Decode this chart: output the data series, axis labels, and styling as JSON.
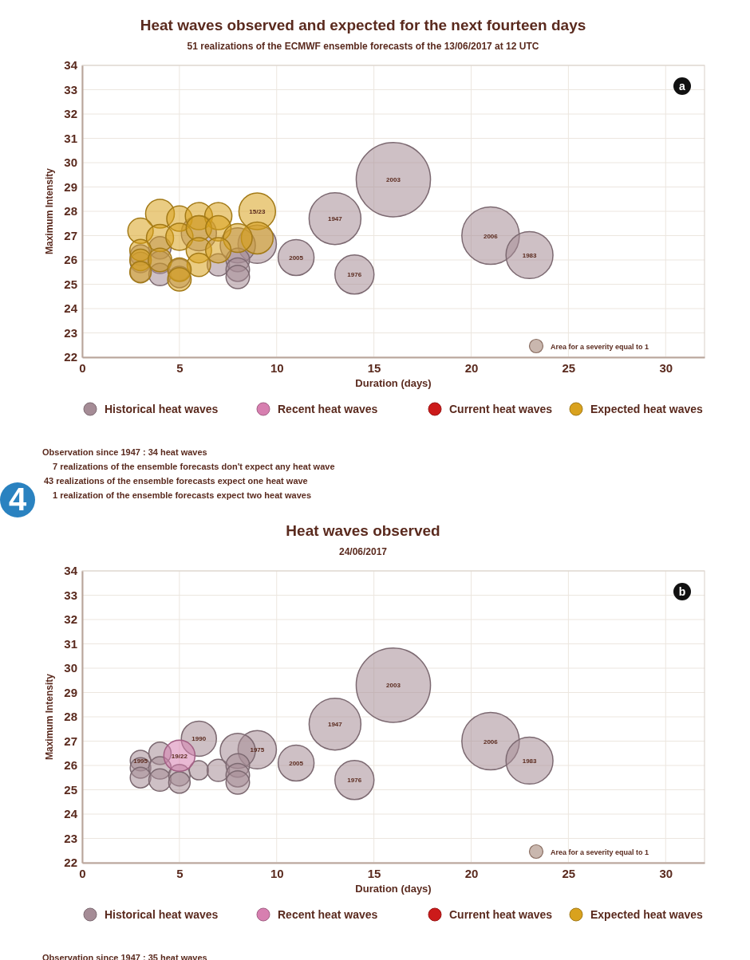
{
  "chart_data": [
    {
      "type": "bubble",
      "title": "Heat waves observed and expected for the next fourteen days",
      "subtitle": "51 realizations of the ECMWF ensemble forecasts of the 13/06/2017 at 12 UTC",
      "xlabel": "Duration (days)",
      "ylabel": "Maximum Intensity",
      "xlim": [
        0,
        32
      ],
      "ylim": [
        22,
        34
      ],
      "xticks": [
        0,
        5,
        10,
        15,
        20,
        25,
        30
      ],
      "yticks": [
        22,
        23,
        24,
        25,
        26,
        27,
        28,
        29,
        30,
        31,
        32,
        33,
        34
      ],
      "grid": true,
      "legend": "bottom",
      "size_legend": [
        {
          "value": 1,
          "label": "Area for a severity equal to 1"
        }
      ],
      "series": [
        {
          "name": "Historical heat waves",
          "color": "#a58c96",
          "x": [
            16,
            21,
            13,
            23,
            14,
            11,
            9,
            6,
            3,
            3,
            3,
            4,
            4,
            4,
            5,
            5,
            6,
            7,
            8,
            8,
            8,
            8
          ],
          "values": [
            29.3,
            27.0,
            27.7,
            26.2,
            25.4,
            26.1,
            26.65,
            27.1,
            26.2,
            25.9,
            25.5,
            26.5,
            25.9,
            25.4,
            25.6,
            25.3,
            null,
            25.8,
            26.6,
            26.0,
            25.6,
            25.3
          ],
          "sizes": [
            30,
            18,
            14.6,
            12,
            8.3,
            7,
            8,
            6.7,
            2.3,
            2.3,
            2.3,
            2.7,
            2.7,
            2.7,
            2.5,
            2.5,
            null,
            2.7,
            6.7,
            3,
            3,
            3
          ]
        },
        {
          "name": "Recent heat waves",
          "color": "#d77fb0"
        },
        {
          "name": "Current heat waves",
          "color": "#cc1a1a"
        },
        {
          "name": "Expected heat waves",
          "color": "#d9a21e",
          "x": [
            9,
            4,
            5,
            6,
            7,
            3,
            4,
            5,
            6,
            7,
            9,
            8,
            3,
            3,
            3,
            4,
            6,
            7,
            6,
            5,
            5
          ],
          "values": [
            28.0,
            27.9,
            27.7,
            27.8,
            27.8,
            27.2,
            26.9,
            26.95,
            27.3,
            27.3,
            26.9,
            26.9,
            26.4,
            26.0,
            25.5,
            26.0,
            26.4,
            26.4,
            25.8,
            25.6,
            25.2
          ],
          "sizes": [
            7.3,
            4.5,
            3.5,
            4,
            4,
            3.5,
            4,
            4,
            3.5,
            3.5,
            5.5,
            4.5,
            2.5,
            2.5,
            2.5,
            3,
            3.5,
            3.5,
            3,
            3,
            3
          ]
        }
      ],
      "annotations": [
        "a",
        "Observation since 1947 : 34 heat waves",
        "7 realizations of the ensemble forecasts don't expect any heat wave",
        "43 realizations of the ensemble forecasts expect one heat wave",
        "1 realization of the ensemble forecasts expect two heat waves",
        "4",
        {
          "text": "2003",
          "x": 16,
          "y": 29.3
        },
        {
          "text": "2006",
          "x": 21,
          "y": 27.0
        },
        {
          "text": "1947",
          "x": 13,
          "y": 27.7
        },
        {
          "text": "1983",
          "x": 23,
          "y": 26.2
        },
        {
          "text": "1976",
          "x": 14,
          "y": 25.4
        },
        {
          "text": "2005",
          "x": 11,
          "y": 26.1
        },
        {
          "text": "15/23",
          "x": 9,
          "y": 28.0
        }
      ]
    },
    {
      "type": "bubble",
      "title": "Heat waves observed",
      "subtitle": "24/06/2017",
      "xlabel": "Duration (days)",
      "ylabel": "Maximum Intensity",
      "xlim": [
        0,
        32
      ],
      "ylim": [
        22,
        34
      ],
      "xticks": [
        0,
        5,
        10,
        15,
        20,
        25,
        30
      ],
      "yticks": [
        22,
        23,
        24,
        25,
        26,
        27,
        28,
        29,
        30,
        31,
        32,
        33,
        34
      ],
      "grid": true,
      "legend": "bottom",
      "size_legend": [
        {
          "value": 1,
          "label": "Area for a severity equal to 1"
        }
      ],
      "series": [
        {
          "name": "Historical heat waves",
          "color": "#a58c96",
          "x": [
            16,
            21,
            13,
            23,
            14,
            11,
            9,
            6,
            3,
            3,
            3,
            4,
            4,
            4,
            5,
            5,
            6,
            7,
            8,
            8,
            8,
            8
          ],
          "values": [
            29.3,
            27.0,
            27.7,
            26.2,
            25.4,
            26.1,
            26.65,
            27.1,
            26.2,
            25.9,
            25.5,
            26.5,
            25.9,
            25.4,
            25.6,
            25.3,
            25.8,
            25.8,
            26.6,
            26.0,
            25.6,
            25.3
          ],
          "sizes": [
            30,
            18,
            14.6,
            12,
            8.3,
            7,
            8,
            6.7,
            2.3,
            2.3,
            2.3,
            2.7,
            2.7,
            2.7,
            2.5,
            2.5,
            2,
            2.7,
            6.7,
            3,
            3,
            3
          ]
        },
        {
          "name": "Recent heat waves",
          "color": "#d77fb0",
          "x": [
            5
          ],
          "values": [
            26.4
          ],
          "sizes": [
            5.3
          ]
        },
        {
          "name": "Current heat waves",
          "color": "#cc1a1a"
        },
        {
          "name": "Expected heat waves",
          "color": "#d9a21e"
        }
      ],
      "annotations": [
        "b",
        "Observation since 1947 : 35 heat waves",
        {
          "text": "2003",
          "x": 16,
          "y": 29.3
        },
        {
          "text": "2006",
          "x": 21,
          "y": 27.0
        },
        {
          "text": "1947",
          "x": 13,
          "y": 27.7
        },
        {
          "text": "1983",
          "x": 23,
          "y": 26.2
        },
        {
          "text": "1976",
          "x": 14,
          "y": 25.4
        },
        {
          "text": "2005",
          "x": 11,
          "y": 26.1
        },
        {
          "text": "1975",
          "x": 9,
          "y": 26.65
        },
        {
          "text": "1990",
          "x": 6,
          "y": 27.1
        },
        {
          "text": "1995",
          "x": 3,
          "y": 26.2
        },
        {
          "text": "19/22",
          "x": 5,
          "y": 26.4
        }
      ]
    }
  ]
}
